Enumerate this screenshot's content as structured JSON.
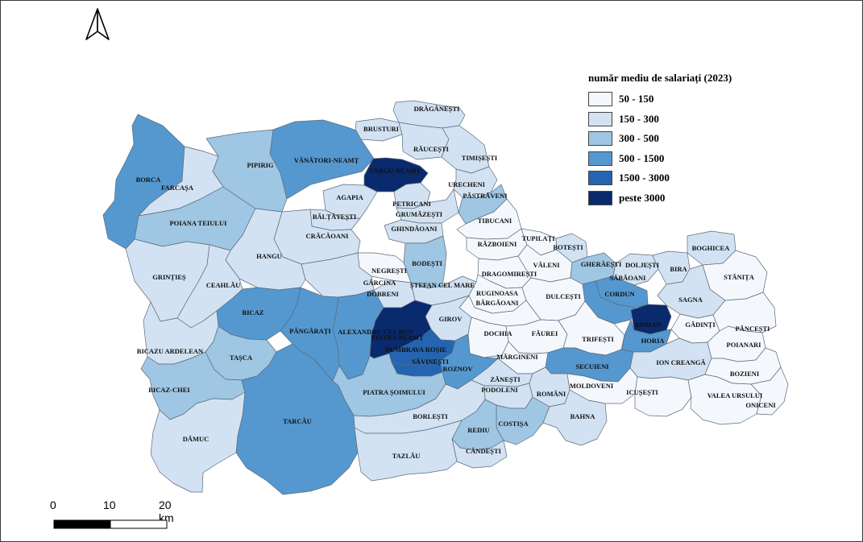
{
  "legend": {
    "title": "număr mediu de salariați (2023)",
    "classes": [
      {
        "label": "50 - 150",
        "color": "#f4f8fd"
      },
      {
        "label": "150 - 300",
        "color": "#d3e2f2"
      },
      {
        "label": "300 - 500",
        "color": "#9fc6e2"
      },
      {
        "label": "500 - 1500",
        "color": "#5598cf"
      },
      {
        "label": "1500 - 3000",
        "color": "#2464b0"
      },
      {
        "label": "peste 3000",
        "color": "#0a2a6e"
      }
    ]
  },
  "scale_bar": {
    "labels": [
      "0",
      "10",
      "20 km"
    ]
  },
  "north_arrow": {
    "icon": "north-arrow-icon"
  },
  "municipalities": [
    {
      "name": "DRĂGĂNEȘTI",
      "cls": 1
    },
    {
      "name": "BRUSTURI",
      "cls": 1
    },
    {
      "name": "RĂUCEȘTI",
      "cls": 1
    },
    {
      "name": "TIMIȘEȘTI",
      "cls": 1
    },
    {
      "name": "VÂNĂTORI-NEAMȚ",
      "cls": 3
    },
    {
      "name": "TÂRGU NEAMȚ",
      "cls": 5
    },
    {
      "name": "URECHENI",
      "cls": 1
    },
    {
      "name": "PĂSTRĂVENI",
      "cls": 2
    },
    {
      "name": "BORCA",
      "cls": 3
    },
    {
      "name": "PIPIRIG",
      "cls": 2
    },
    {
      "name": "FARCAȘA",
      "cls": 1
    },
    {
      "name": "AGAPIA",
      "cls": 1
    },
    {
      "name": "PETRICANI",
      "cls": 1
    },
    {
      "name": "BĂLȚĂTEȘTI",
      "cls": 1
    },
    {
      "name": "GRUMĂZEȘTI",
      "cls": 1
    },
    {
      "name": "TIBUCANI",
      "cls": 0
    },
    {
      "name": "POIANA TEIULUI",
      "cls": 2
    },
    {
      "name": "CRĂCĂOANI",
      "cls": 1
    },
    {
      "name": "GHINDĂOANI",
      "cls": 1
    },
    {
      "name": "RĂZBOIENI",
      "cls": 0
    },
    {
      "name": "TUPILAȚI",
      "cls": 0
    },
    {
      "name": "BOTEȘTI",
      "cls": 1
    },
    {
      "name": "BOGHICEA",
      "cls": 1
    },
    {
      "name": "HANGU",
      "cls": 1
    },
    {
      "name": "BODEȘTI",
      "cls": 2
    },
    {
      "name": "VĂLENI",
      "cls": 0
    },
    {
      "name": "GHERĂEȘTI",
      "cls": 2
    },
    {
      "name": "DOLJEȘTI",
      "cls": 1
    },
    {
      "name": "BIRA",
      "cls": 1
    },
    {
      "name": "STĂNIȚA",
      "cls": 0
    },
    {
      "name": "GRINȚIEȘ",
      "cls": 1
    },
    {
      "name": "CEAHLĂU",
      "cls": 1
    },
    {
      "name": "NEGREȘTI",
      "cls": 0
    },
    {
      "name": "DRAGOMIREȘTI",
      "cls": 0
    },
    {
      "name": "SĂBĂOANI",
      "cls": 3
    },
    {
      "name": "GÂRCINA",
      "cls": 1
    },
    {
      "name": "ȘTEFAN CEL MARE",
      "cls": 1
    },
    {
      "name": "RUGINOASA",
      "cls": 0
    },
    {
      "name": "DULCEȘTI",
      "cls": 0
    },
    {
      "name": "CORDUN",
      "cls": 3
    },
    {
      "name": "SAGNA",
      "cls": 1
    },
    {
      "name": "BICAZ",
      "cls": 3
    },
    {
      "name": "DOBRENI",
      "cls": 1
    },
    {
      "name": "BĂRGĂOANI",
      "cls": 0
    },
    {
      "name": "GIROV",
      "cls": 1
    },
    {
      "name": "ROMAN",
      "cls": 5
    },
    {
      "name": "GĂDINȚI",
      "cls": 0
    },
    {
      "name": "PÂNGĂRAȚI",
      "cls": 3
    },
    {
      "name": "ALEXANDRU CEL BUN",
      "cls": 3
    },
    {
      "name": "PIATRA NEAMȚ",
      "cls": 5
    },
    {
      "name": "DOCHIA",
      "cls": 0
    },
    {
      "name": "FĂUREI",
      "cls": 0
    },
    {
      "name": "TRIFEȘTI",
      "cls": 0
    },
    {
      "name": "HORIA",
      "cls": 3
    },
    {
      "name": "PĂNCEȘTI",
      "cls": 0
    },
    {
      "name": "BICAZU ARDELEAN",
      "cls": 1
    },
    {
      "name": "TAȘCA",
      "cls": 2
    },
    {
      "name": "DUMBRAVA ROȘIE",
      "cls": 4
    },
    {
      "name": "SĂVINEȘTI",
      "cls": 4
    },
    {
      "name": "ROZNOV",
      "cls": 3
    },
    {
      "name": "MĂRGINENI",
      "cls": 0
    },
    {
      "name": "SECUIENI",
      "cls": 3
    },
    {
      "name": "ION CREANGĂ",
      "cls": 1
    },
    {
      "name": "POIANARI",
      "cls": 0
    },
    {
      "name": "BOZIENI",
      "cls": 0
    },
    {
      "name": "BICAZ-CHEI",
      "cls": 2
    },
    {
      "name": "ZĂNEȘTI",
      "cls": 1
    },
    {
      "name": "PODOLENI",
      "cls": 1
    },
    {
      "name": "ROMÂNI",
      "cls": 1
    },
    {
      "name": "MOLDOVENI",
      "cls": 0
    },
    {
      "name": "ICUȘEȘTI",
      "cls": 0
    },
    {
      "name": "VALEA URSULUI",
      "cls": 0
    },
    {
      "name": "ONICENI",
      "cls": 0
    },
    {
      "name": "PIATRA ȘOIMULUI",
      "cls": 2
    },
    {
      "name": "BORLEȘTI",
      "cls": 1
    },
    {
      "name": "COSTIȘA",
      "cls": 2
    },
    {
      "name": "BAHNA",
      "cls": 1
    },
    {
      "name": "TARCĂU",
      "cls": 3
    },
    {
      "name": "DĂMUC",
      "cls": 1
    },
    {
      "name": "REDIU",
      "cls": 2
    },
    {
      "name": "CÂNDEȘTI",
      "cls": 1
    },
    {
      "name": "TAZLĂU",
      "cls": 1
    }
  ]
}
